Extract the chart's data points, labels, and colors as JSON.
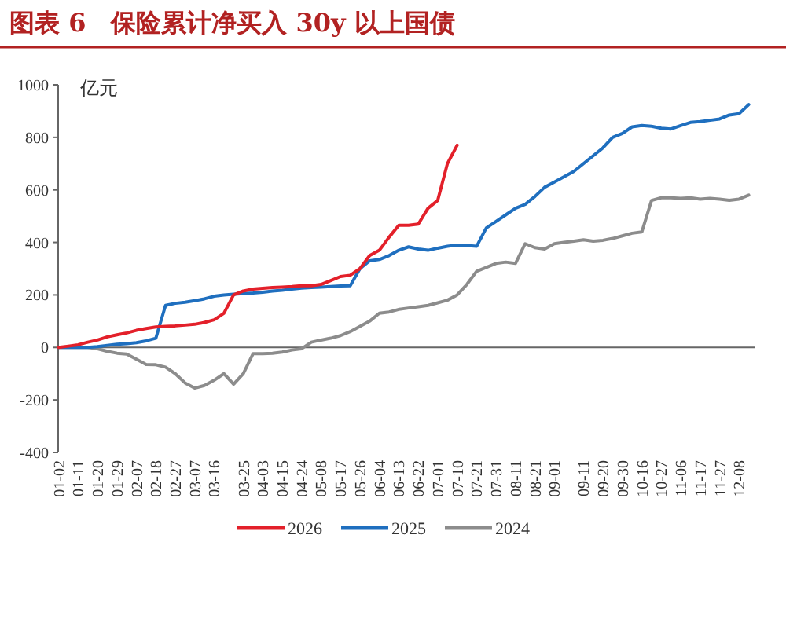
{
  "chart_data": {
    "type": "line",
    "title": "图表 6　保险累计净买入 30y 以上国债",
    "ylabel": "亿元",
    "categories": [
      "01-02",
      null,
      "01-11",
      null,
      "01-20",
      null,
      "01-29",
      null,
      "02-07",
      null,
      "02-18",
      null,
      "02-27",
      null,
      "03-07",
      null,
      "03-16",
      null,
      null,
      "03-25",
      null,
      "04-03",
      null,
      "04-15",
      null,
      "04-24",
      null,
      "05-08",
      null,
      "05-17",
      null,
      "05-26",
      null,
      "06-04",
      null,
      "06-13",
      null,
      "06-22",
      null,
      "07-01",
      null,
      "07-10",
      null,
      "07-21",
      null,
      "07-31",
      null,
      "08-11",
      null,
      "08-21",
      null,
      "09-01",
      null,
      null,
      "09-11",
      null,
      "09-20",
      null,
      "09-30",
      null,
      "10-16",
      null,
      "10-27",
      null,
      "11-06",
      null,
      "11-17",
      null,
      "11-27",
      null,
      "12-08",
      null
    ],
    "series": [
      {
        "name": "2026",
        "color": "#e3202a",
        "values": [
          0,
          5,
          10,
          20,
          28,
          40,
          48,
          55,
          65,
          72,
          78,
          80,
          82,
          85,
          88,
          95,
          105,
          130,
          200,
          215,
          222,
          225,
          228,
          230,
          232,
          235,
          235,
          240,
          255,
          270,
          275,
          300,
          350,
          370,
          420,
          465,
          465,
          470,
          530,
          560,
          700,
          770,
          null,
          null,
          null,
          null,
          null,
          null,
          null,
          null,
          null,
          null,
          null,
          null,
          null,
          null,
          null,
          null,
          null,
          null,
          null,
          null,
          null,
          null,
          null,
          null,
          null,
          null,
          null,
          null,
          null,
          null
        ]
      },
      {
        "name": "2025",
        "color": "#1f6fbf",
        "values": [
          0,
          0,
          0,
          0,
          3,
          8,
          12,
          14,
          18,
          25,
          35,
          160,
          168,
          172,
          178,
          185,
          195,
          200,
          203,
          205,
          207,
          210,
          215,
          218,
          222,
          226,
          228,
          230,
          232,
          234,
          235,
          300,
          330,
          335,
          350,
          370,
          383,
          375,
          370,
          378,
          385,
          390,
          388,
          385,
          455,
          480,
          505,
          530,
          545,
          575,
          610,
          630,
          650,
          670,
          700,
          730,
          760,
          800,
          815,
          840,
          845,
          842,
          835,
          832,
          845,
          857,
          860,
          865,
          870,
          885,
          890,
          925
        ]
      },
      {
        "name": "2024",
        "color": "#8c8c8c",
        "values": [
          0,
          0,
          0,
          0,
          -5,
          -15,
          -22,
          -25,
          -45,
          -65,
          -66,
          -75,
          -100,
          -135,
          -155,
          -145,
          -125,
          -100,
          -140,
          -100,
          -24,
          -24,
          -22,
          -18,
          -10,
          -5,
          20,
          28,
          35,
          45,
          60,
          80,
          100,
          130,
          135,
          145,
          150,
          155,
          160,
          170,
          180,
          200,
          240,
          290,
          305,
          320,
          325,
          320,
          395,
          380,
          375,
          395,
          400,
          405,
          410,
          405,
          408,
          415,
          425,
          435,
          440,
          560,
          570,
          570,
          568,
          570,
          565,
          568,
          565,
          560,
          565,
          580
        ]
      }
    ],
    "ylim": [
      -400,
      1000
    ],
    "yticks": [
      -400,
      -200,
      0,
      200,
      400,
      600,
      800,
      1000
    ],
    "legend": "bottom"
  }
}
